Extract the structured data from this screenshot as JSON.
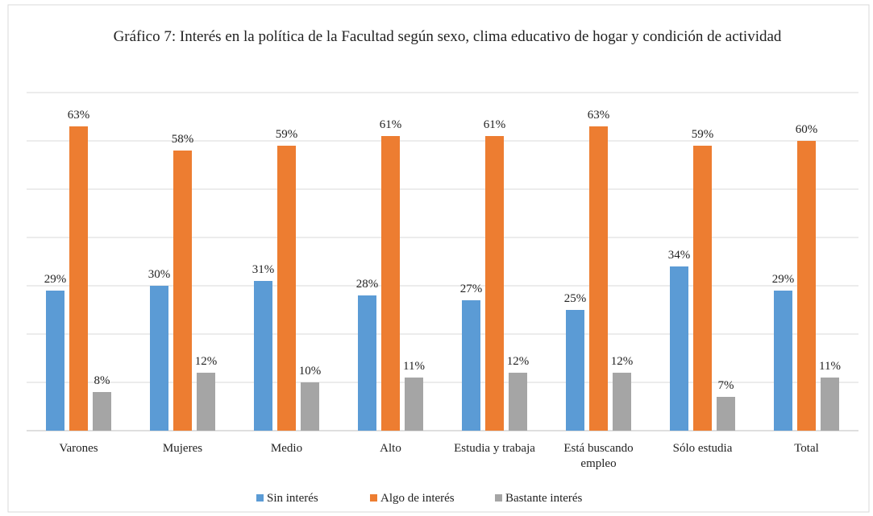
{
  "chart_data": {
    "type": "bar",
    "title": "Gráfico 7: Interés en la política de la Facultad según sexo, clima educativo de hogar y condición de actividad",
    "categories": [
      "Varones",
      "Mujeres",
      "Medio",
      "Alto",
      "Estudia y trabaja",
      "Está buscando empleo",
      "Sólo estudia",
      "Total"
    ],
    "series": [
      {
        "name": "Sin interés",
        "color": "#5b9bd5",
        "values": [
          29,
          30,
          31,
          28,
          27,
          25,
          34,
          29
        ],
        "value_labels": [
          "29%",
          "30%",
          "31%",
          "28%",
          "27%",
          "25%",
          "34%",
          "29%"
        ]
      },
      {
        "name": "Algo de interés",
        "color": "#ed7d31",
        "values": [
          63,
          58,
          59,
          61,
          61,
          63,
          59,
          60
        ],
        "value_labels": [
          "63%",
          "58%",
          "59%",
          "61%",
          "61%",
          "63%",
          "59%",
          "60%"
        ]
      },
      {
        "name": "Bastante interés",
        "color": "#a5a5a5",
        "values": [
          8,
          12,
          10,
          11,
          12,
          12,
          7,
          11
        ],
        "value_labels": [
          "8%",
          "12%",
          "10%",
          "11%",
          "12%",
          "12%",
          "7%",
          "11%"
        ]
      }
    ],
    "ylim": [
      0,
      70
    ],
    "yticks": [
      0,
      10,
      20,
      30,
      40,
      50,
      60,
      70
    ],
    "grid": true,
    "legend": "bottom"
  }
}
